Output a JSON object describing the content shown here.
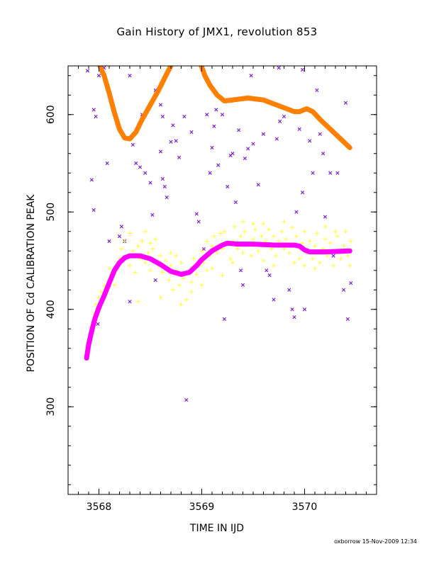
{
  "chart_data": {
    "type": "scatter",
    "title": "Gain History of JMX1, revolution 853",
    "xlabel": "TIME IN IJD",
    "ylabel": "POSITION OF Cd CALIBRATION PEAK",
    "credit": "oxborrow 15-Nov-2009 12:34",
    "xlim": [
      3567.7,
      3570.7
    ],
    "ylim": [
      210,
      650
    ],
    "x_ticks": [
      3568,
      3569,
      3570
    ],
    "y_ticks": [
      300,
      400,
      500,
      600
    ],
    "grid": false,
    "colors": {
      "violet_points": "#7a1fd6",
      "yellow_points": "#ffff33",
      "magenta_curve": "#ff00ff",
      "orange_curve": "#ff7f00"
    },
    "series": [
      {
        "style": "points-x",
        "color": "violet_points",
        "points": [
          [
            3567.89,
            645
          ],
          [
            3567.95,
            605
          ],
          [
            3567.97,
            598
          ],
          [
            3568.0,
            640
          ],
          [
            3568.05,
            648
          ],
          [
            3567.93,
            533
          ],
          [
            3567.95,
            502
          ],
          [
            3568.08,
            550
          ],
          [
            3568.1,
            425
          ],
          [
            3568.2,
            475
          ],
          [
            3568.22,
            485
          ],
          [
            3568.25,
            470
          ],
          [
            3568.3,
            640
          ],
          [
            3568.33,
            569
          ],
          [
            3568.36,
            550
          ],
          [
            3568.4,
            546
          ],
          [
            3568.45,
            540
          ],
          [
            3568.5,
            530
          ],
          [
            3568.52,
            497
          ],
          [
            3568.55,
            625
          ],
          [
            3568.6,
            610
          ],
          [
            3568.62,
            598
          ],
          [
            3568.6,
            562
          ],
          [
            3568.62,
            534
          ],
          [
            3568.64,
            526
          ],
          [
            3568.66,
            515
          ],
          [
            3568.7,
            572
          ],
          [
            3568.72,
            589
          ],
          [
            3568.75,
            573
          ],
          [
            3568.78,
            556
          ],
          [
            3568.83,
            598
          ],
          [
            3568.85,
            307
          ],
          [
            3568.9,
            582
          ],
          [
            3568.95,
            498
          ],
          [
            3568.97,
            490
          ],
          [
            3569.02,
            462
          ],
          [
            3569.08,
            540
          ],
          [
            3569.1,
            566
          ],
          [
            3569.12,
            588
          ],
          [
            3569.14,
            605
          ],
          [
            3569.16,
            548
          ],
          [
            3569.2,
            600
          ],
          [
            3569.22,
            390
          ],
          [
            3569.25,
            526
          ],
          [
            3569.28,
            558
          ],
          [
            3569.3,
            560
          ],
          [
            3569.33,
            510
          ],
          [
            3569.36,
            584
          ],
          [
            3569.4,
            425
          ],
          [
            3569.42,
            555
          ],
          [
            3569.45,
            565
          ],
          [
            3569.48,
            640
          ],
          [
            3569.5,
            570
          ],
          [
            3569.55,
            528
          ],
          [
            3569.6,
            580
          ],
          [
            3569.63,
            440
          ],
          [
            3569.66,
            435
          ],
          [
            3569.7,
            410
          ],
          [
            3569.73,
            575
          ],
          [
            3569.76,
            593
          ],
          [
            3569.8,
            598
          ],
          [
            3569.85,
            420
          ],
          [
            3569.88,
            400
          ],
          [
            3569.9,
            392
          ],
          [
            3569.92,
            500
          ],
          [
            3569.95,
            585
          ],
          [
            3569.98,
            520
          ],
          [
            3570.0,
            400
          ],
          [
            3570.05,
            573
          ],
          [
            3570.08,
            540
          ],
          [
            3570.12,
            625
          ],
          [
            3570.15,
            580
          ],
          [
            3570.18,
            560
          ],
          [
            3570.2,
            495
          ],
          [
            3570.25,
            540
          ],
          [
            3570.28,
            455
          ],
          [
            3570.32,
            540
          ],
          [
            3570.38,
            420
          ],
          [
            3570.4,
            612
          ],
          [
            3570.42,
            390
          ],
          [
            3570.45,
            427
          ],
          [
            3569.05,
            600
          ],
          [
            3569.75,
            648
          ],
          [
            3569.98,
            646
          ],
          [
            3568.42,
            600
          ],
          [
            3568.1,
            470
          ],
          [
            3568.55,
            430
          ],
          [
            3567.99,
            385
          ],
          [
            3568.3,
            408
          ],
          [
            3569.38,
            440
          ]
        ]
      },
      {
        "style": "points-plus",
        "color": "yellow_points",
        "points": [
          [
            3567.88,
            352
          ],
          [
            3567.9,
            370
          ],
          [
            3567.92,
            382
          ],
          [
            3567.95,
            395
          ],
          [
            3567.97,
            405
          ],
          [
            3568.0,
            412
          ],
          [
            3568.02,
            418
          ],
          [
            3568.05,
            424
          ],
          [
            3568.1,
            430
          ],
          [
            3568.12,
            436
          ],
          [
            3568.15,
            440
          ],
          [
            3568.18,
            448
          ],
          [
            3568.2,
            452
          ],
          [
            3568.22,
            462
          ],
          [
            3568.25,
            470
          ],
          [
            3568.28,
            455
          ],
          [
            3568.3,
            445
          ],
          [
            3568.33,
            460
          ],
          [
            3568.35,
            438
          ],
          [
            3568.38,
            465
          ],
          [
            3568.4,
            452
          ],
          [
            3568.42,
            470
          ],
          [
            3568.45,
            448
          ],
          [
            3568.48,
            458
          ],
          [
            3568.5,
            440
          ],
          [
            3568.52,
            462
          ],
          [
            3568.55,
            472
          ],
          [
            3568.58,
            445
          ],
          [
            3568.6,
            455
          ],
          [
            3568.62,
            438
          ],
          [
            3568.65,
            450
          ],
          [
            3568.68,
            430
          ],
          [
            3568.7,
            445
          ],
          [
            3568.72,
            420
          ],
          [
            3568.75,
            440
          ],
          [
            3568.78,
            425
          ],
          [
            3568.8,
            448
          ],
          [
            3568.82,
            432
          ],
          [
            3568.85,
            410
          ],
          [
            3568.88,
            440
          ],
          [
            3568.9,
            428
          ],
          [
            3568.92,
            452
          ],
          [
            3568.95,
            436
          ],
          [
            3568.98,
            445
          ],
          [
            3569.0,
            460
          ],
          [
            3569.02,
            448
          ],
          [
            3569.05,
            470
          ],
          [
            3569.08,
            455
          ],
          [
            3569.1,
            465
          ],
          [
            3569.12,
            475
          ],
          [
            3569.15,
            458
          ],
          [
            3569.18,
            478
          ],
          [
            3569.2,
            462
          ],
          [
            3569.22,
            480
          ],
          [
            3569.25,
            468
          ],
          [
            3569.28,
            452
          ],
          [
            3569.3,
            470
          ],
          [
            3569.32,
            485
          ],
          [
            3569.35,
            462
          ],
          [
            3569.38,
            475
          ],
          [
            3569.4,
            458
          ],
          [
            3569.42,
            480
          ],
          [
            3569.45,
            466
          ],
          [
            3569.48,
            455
          ],
          [
            3569.5,
            472
          ],
          [
            3569.52,
            482
          ],
          [
            3569.55,
            460
          ],
          [
            3569.58,
            475
          ],
          [
            3569.6,
            450
          ],
          [
            3569.62,
            470
          ],
          [
            3569.65,
            482
          ],
          [
            3569.68,
            462
          ],
          [
            3569.7,
            475
          ],
          [
            3569.72,
            455
          ],
          [
            3569.75,
            470
          ],
          [
            3569.78,
            480
          ],
          [
            3569.8,
            462
          ],
          [
            3569.82,
            472
          ],
          [
            3569.85,
            458
          ],
          [
            3569.88,
            484
          ],
          [
            3569.9,
            465
          ],
          [
            3569.92,
            475
          ],
          [
            3569.95,
            452
          ],
          [
            3569.98,
            468
          ],
          [
            3570.0,
            480
          ],
          [
            3570.02,
            458
          ],
          [
            3570.05,
            470
          ],
          [
            3570.08,
            452
          ],
          [
            3570.1,
            465
          ],
          [
            3570.12,
            478
          ],
          [
            3570.15,
            448
          ],
          [
            3570.18,
            462
          ],
          [
            3570.2,
            472
          ],
          [
            3570.22,
            455
          ],
          [
            3570.25,
            468
          ],
          [
            3570.28,
            445
          ],
          [
            3570.3,
            460
          ],
          [
            3570.32,
            475
          ],
          [
            3570.35,
            452
          ],
          [
            3570.38,
            465
          ],
          [
            3570.4,
            480
          ],
          [
            3570.42,
            455
          ],
          [
            3570.45,
            470
          ],
          [
            3568.1,
            442
          ],
          [
            3568.3,
            478
          ],
          [
            3568.5,
            468
          ],
          [
            3568.7,
            458
          ],
          [
            3568.9,
            418
          ],
          [
            3569.1,
            442
          ],
          [
            3569.3,
            448
          ],
          [
            3569.5,
            488
          ],
          [
            3569.7,
            445
          ],
          [
            3569.9,
            448
          ],
          [
            3570.1,
            442
          ],
          [
            3570.3,
            480
          ],
          [
            3568.38,
            408
          ],
          [
            3568.6,
            412
          ],
          [
            3568.8,
            405
          ],
          [
            3569.0,
            425
          ],
          [
            3569.2,
            435
          ],
          [
            3569.4,
            490
          ],
          [
            3569.6,
            488
          ],
          [
            3569.8,
            490
          ],
          [
            3570.0,
            445
          ],
          [
            3570.2,
            485
          ],
          [
            3570.44,
            445
          ],
          [
            3568.15,
            425
          ],
          [
            3568.45,
            480
          ],
          [
            3568.75,
            455
          ],
          [
            3569.05,
            440
          ]
        ]
      },
      {
        "style": "line",
        "color": "magenta_curve",
        "points": [
          [
            3567.88,
            350
          ],
          [
            3567.9,
            364
          ],
          [
            3567.93,
            378
          ],
          [
            3567.96,
            390
          ],
          [
            3568.0,
            402
          ],
          [
            3568.05,
            414
          ],
          [
            3568.1,
            427
          ],
          [
            3568.15,
            440
          ],
          [
            3568.2,
            448
          ],
          [
            3568.25,
            453
          ],
          [
            3568.3,
            455
          ],
          [
            3568.4,
            455
          ],
          [
            3568.5,
            452
          ],
          [
            3568.6,
            446
          ],
          [
            3568.7,
            439
          ],
          [
            3568.8,
            436
          ],
          [
            3568.88,
            438
          ],
          [
            3568.95,
            445
          ],
          [
            3569.0,
            451
          ],
          [
            3569.1,
            460
          ],
          [
            3569.2,
            466
          ],
          [
            3569.25,
            468
          ],
          [
            3569.35,
            467
          ],
          [
            3569.5,
            467
          ],
          [
            3569.7,
            466
          ],
          [
            3569.9,
            466
          ],
          [
            3569.95,
            465
          ],
          [
            3570.0,
            461
          ],
          [
            3570.05,
            459
          ],
          [
            3570.2,
            459
          ],
          [
            3570.44,
            460
          ]
        ]
      },
      {
        "style": "line",
        "color": "orange_curve",
        "segments": [
          [
            [
              3568.0,
              652
            ],
            [
              3568.05,
              640
            ],
            [
              3568.1,
              622
            ],
            [
              3568.15,
              602
            ],
            [
              3568.2,
              585
            ],
            [
              3568.25,
              576
            ],
            [
              3568.3,
              575
            ],
            [
              3568.36,
              582
            ],
            [
              3568.42,
              595
            ],
            [
              3568.5,
              610
            ],
            [
              3568.58,
              625
            ],
            [
              3568.65,
              640
            ],
            [
              3568.7,
              650
            ]
          ],
          [
            [
              3568.99,
              652
            ],
            [
              3569.03,
              640
            ],
            [
              3569.08,
              630
            ],
            [
              3569.15,
              620
            ],
            [
              3569.22,
              614
            ],
            [
              3569.3,
              615
            ],
            [
              3569.45,
              617
            ],
            [
              3569.6,
              615
            ],
            [
              3569.75,
              609
            ],
            [
              3569.9,
              603
            ],
            [
              3569.95,
              603
            ],
            [
              3570.02,
              606
            ],
            [
              3570.08,
              603
            ],
            [
              3570.15,
              595
            ],
            [
              3570.25,
              585
            ],
            [
              3570.35,
              575
            ],
            [
              3570.44,
              566
            ]
          ]
        ]
      }
    ]
  }
}
